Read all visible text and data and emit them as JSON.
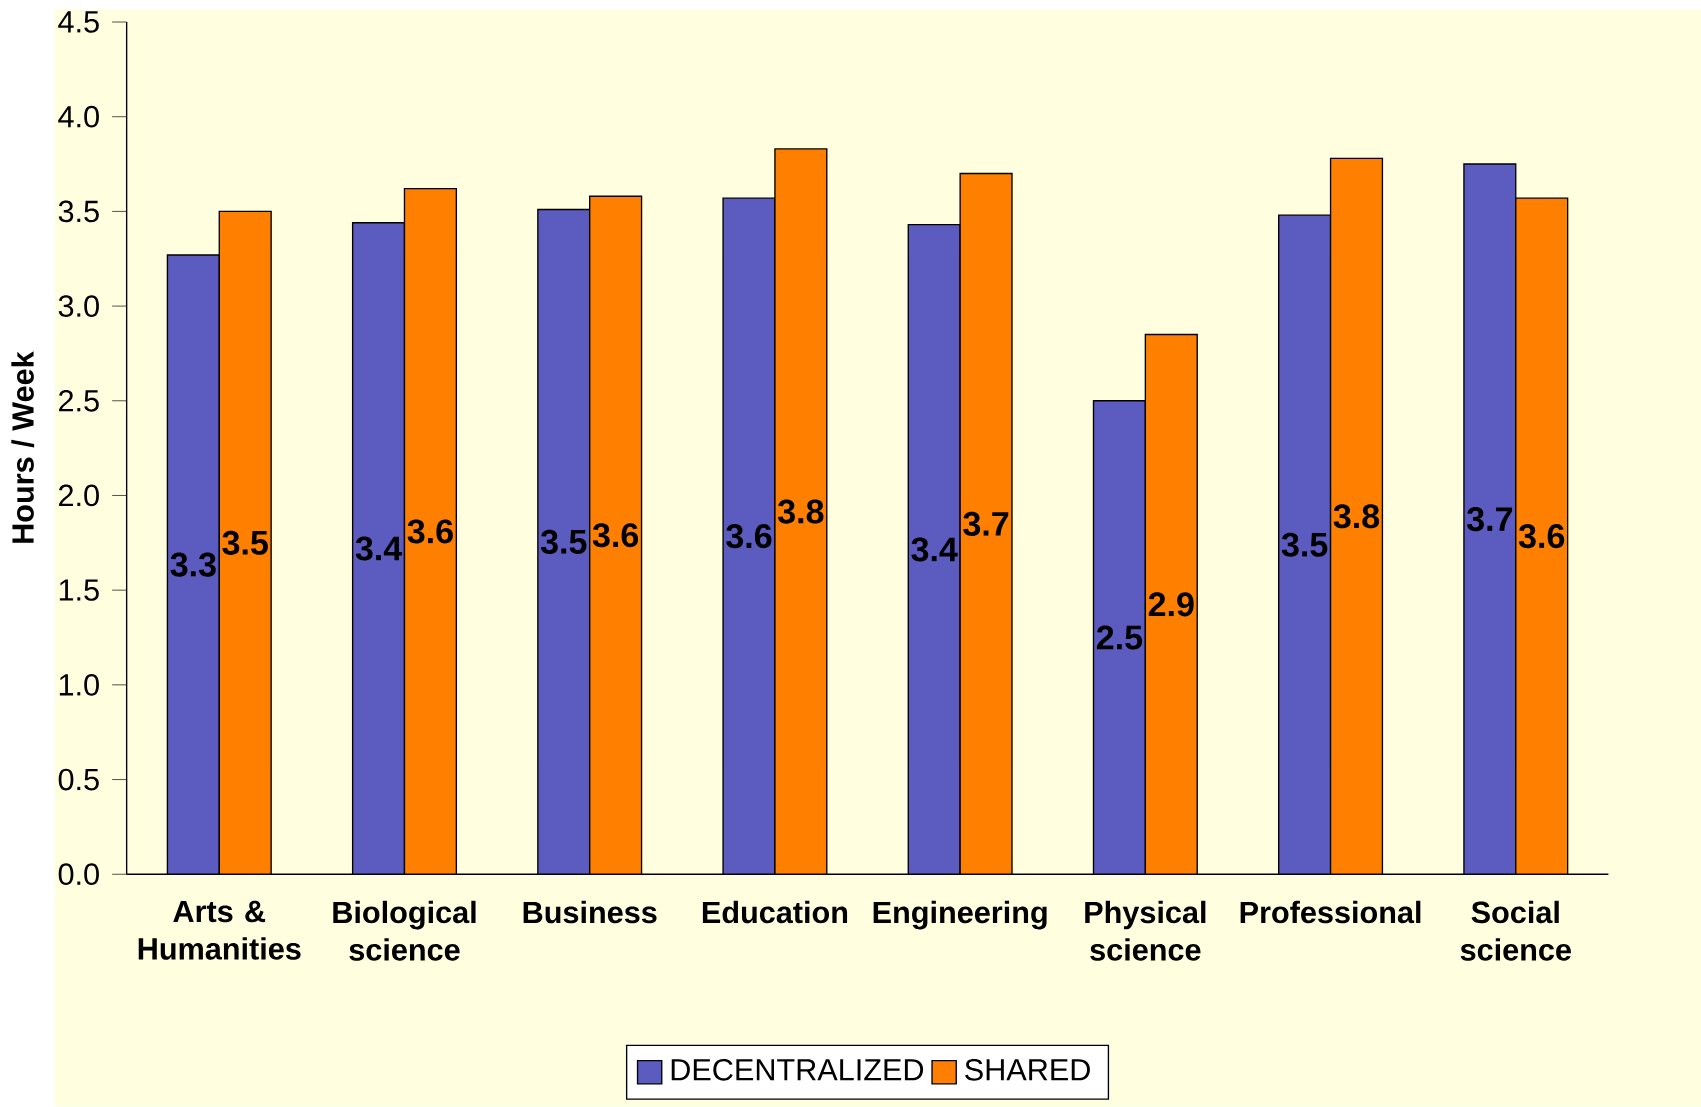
{
  "chart_data": {
    "type": "bar",
    "ylabel": "Hours / Week",
    "categories": [
      "Arts & Humanities",
      "Biological science",
      "Business",
      "Education",
      "Engineering",
      "Physical science",
      "Professional",
      "Social science"
    ],
    "series": [
      {
        "name": "DECENTRALIZED",
        "color": "#5b5bc0",
        "values": [
          3.27,
          3.44,
          3.51,
          3.57,
          3.43,
          2.5,
          3.48,
          3.75
        ],
        "value_labels": [
          "3.3",
          "3.4",
          "3.5",
          "3.6",
          "3.4",
          "2.5",
          "3.5",
          "3.7"
        ]
      },
      {
        "name": "SHARED",
        "color": "#ff8000",
        "values": [
          3.5,
          3.62,
          3.58,
          3.83,
          3.7,
          2.85,
          3.78,
          3.57
        ],
        "value_labels": [
          "3.5",
          "3.6",
          "3.6",
          "3.8",
          "3.7",
          "2.9",
          "3.8",
          "3.6"
        ]
      }
    ],
    "ylim": [
      0,
      4.5
    ],
    "yticks": [
      {
        "value": 0,
        "label": "0.0"
      },
      {
        "value": 0.5,
        "label": "0.5"
      },
      {
        "value": 1,
        "label": "1.0"
      },
      {
        "value": 1.5,
        "label": "1.5"
      },
      {
        "value": 2,
        "label": "2.0"
      },
      {
        "value": 2.5,
        "label": "2.5"
      },
      {
        "value": 3,
        "label": "3.0"
      },
      {
        "value": 3.5,
        "label": "3.5"
      },
      {
        "value": 4,
        "label": "4.0"
      },
      {
        "value": 4.5,
        "label": "4.5"
      }
    ],
    "legend": "bottom",
    "grid": false
  }
}
